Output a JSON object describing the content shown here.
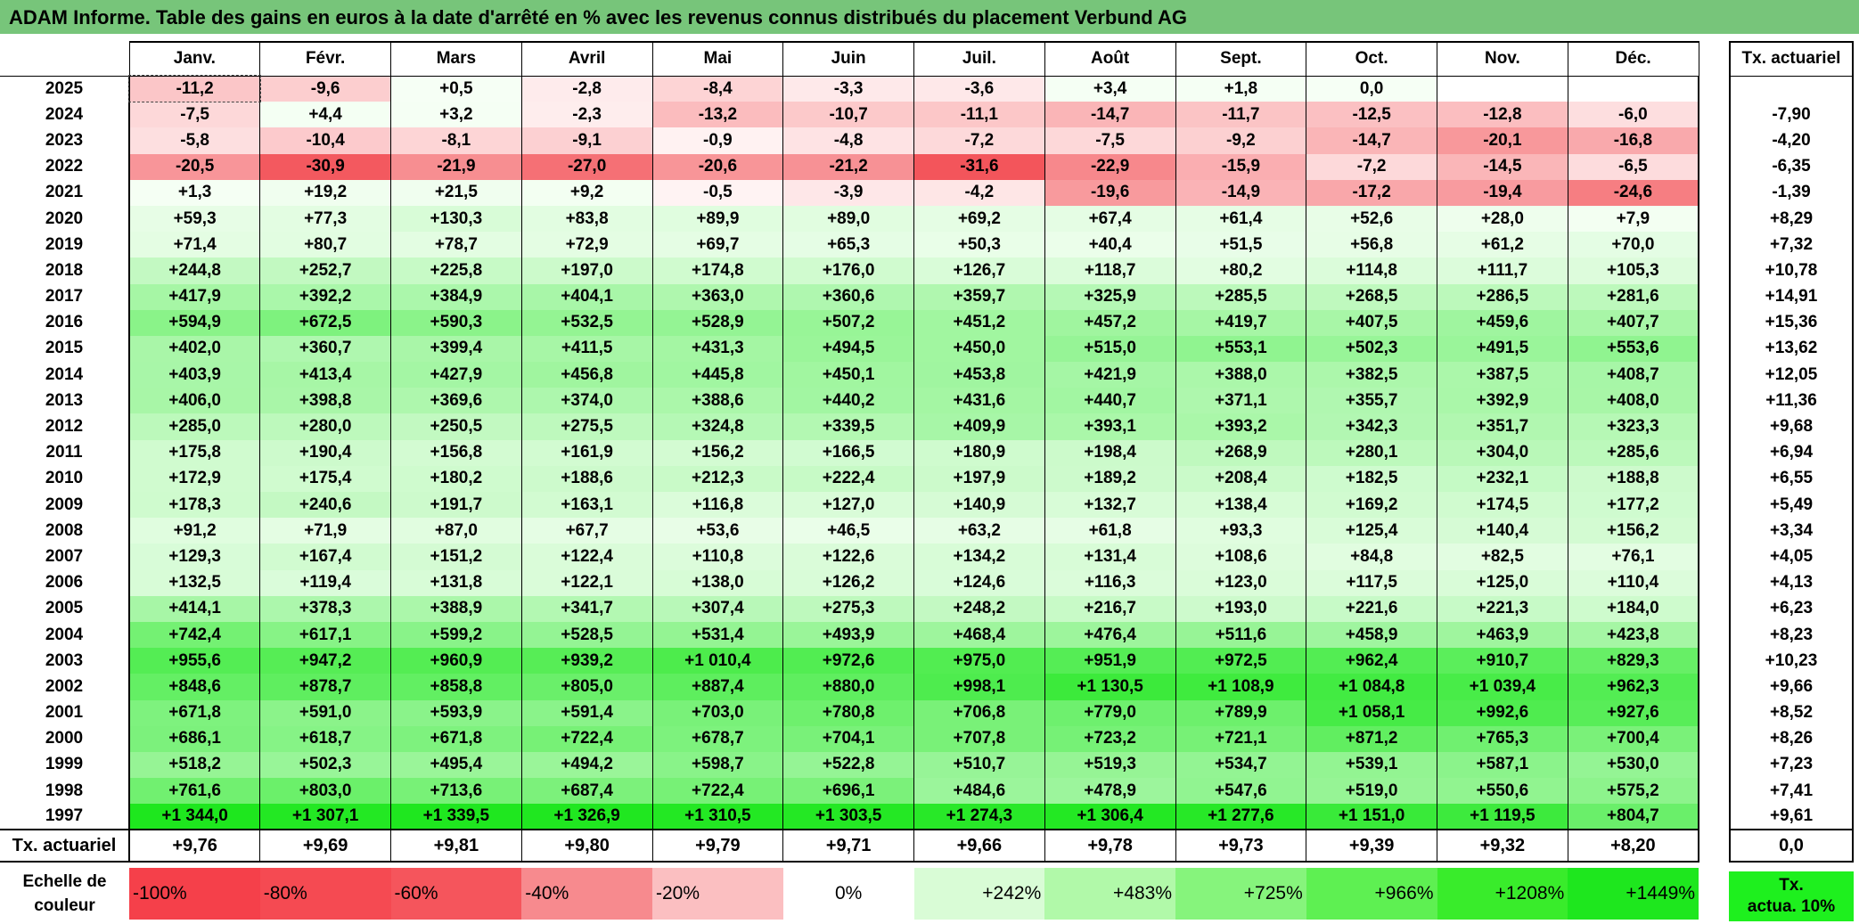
{
  "title": "ADAM Informe. Table des gains en euros à la date d'arrêté en % avec les revenus connus distribués du placement Verbund AG",
  "months": [
    "Janv.",
    "Févr.",
    "Mars",
    "Avril",
    "Mai",
    "Juin",
    "Juil.",
    "Août",
    "Sept.",
    "Oct.",
    "Nov.",
    "Déc."
  ],
  "rate_header": "Tx. actuariel",
  "rows": [
    {
      "year": "2025",
      "values": [
        "-11,2",
        "-9,6",
        "+0,5",
        "-2,8",
        "-8,4",
        "-3,3",
        "-3,6",
        "+3,4",
        "+1,8",
        "0,0",
        "",
        ""
      ],
      "rate": ""
    },
    {
      "year": "2024",
      "values": [
        "-7,5",
        "+4,4",
        "+3,2",
        "-2,3",
        "-13,2",
        "-10,7",
        "-11,1",
        "-14,7",
        "-11,7",
        "-12,5",
        "-12,8",
        "-6,0"
      ],
      "rate": "-7,90"
    },
    {
      "year": "2023",
      "values": [
        "-5,8",
        "-10,4",
        "-8,1",
        "-9,1",
        "-0,9",
        "-4,8",
        "-7,2",
        "-7,5",
        "-9,2",
        "-14,7",
        "-20,1",
        "-16,8"
      ],
      "rate": "-4,20"
    },
    {
      "year": "2022",
      "values": [
        "-20,5",
        "-30,9",
        "-21,9",
        "-27,0",
        "-20,6",
        "-21,2",
        "-31,6",
        "-22,9",
        "-15,9",
        "-7,2",
        "-14,5",
        "-6,5"
      ],
      "rate": "-6,35"
    },
    {
      "year": "2021",
      "values": [
        "+1,3",
        "+19,2",
        "+21,5",
        "+9,2",
        "-0,5",
        "-3,9",
        "-4,2",
        "-19,6",
        "-14,9",
        "-17,2",
        "-19,4",
        "-24,6"
      ],
      "rate": "-1,39"
    },
    {
      "year": "2020",
      "values": [
        "+59,3",
        "+77,3",
        "+130,3",
        "+83,8",
        "+89,9",
        "+89,0",
        "+69,2",
        "+67,4",
        "+61,4",
        "+52,6",
        "+28,0",
        "+7,9"
      ],
      "rate": "+8,29"
    },
    {
      "year": "2019",
      "values": [
        "+71,4",
        "+80,7",
        "+78,7",
        "+72,9",
        "+69,7",
        "+65,3",
        "+50,3",
        "+40,4",
        "+51,5",
        "+56,8",
        "+61,2",
        "+70,0"
      ],
      "rate": "+7,32"
    },
    {
      "year": "2018",
      "values": [
        "+244,8",
        "+252,7",
        "+225,8",
        "+197,0",
        "+174,8",
        "+176,0",
        "+126,7",
        "+118,7",
        "+80,2",
        "+114,8",
        "+111,7",
        "+105,3"
      ],
      "rate": "+10,78"
    },
    {
      "year": "2017",
      "values": [
        "+417,9",
        "+392,2",
        "+384,9",
        "+404,1",
        "+363,0",
        "+360,6",
        "+359,7",
        "+325,9",
        "+285,5",
        "+268,5",
        "+286,5",
        "+281,6"
      ],
      "rate": "+14,91"
    },
    {
      "year": "2016",
      "values": [
        "+594,9",
        "+672,5",
        "+590,3",
        "+532,5",
        "+528,9",
        "+507,2",
        "+451,2",
        "+457,2",
        "+419,7",
        "+407,5",
        "+459,6",
        "+407,7"
      ],
      "rate": "+15,36"
    },
    {
      "year": "2015",
      "values": [
        "+402,0",
        "+360,7",
        "+399,4",
        "+411,5",
        "+431,3",
        "+494,5",
        "+450,0",
        "+515,0",
        "+553,1",
        "+502,3",
        "+491,5",
        "+553,6"
      ],
      "rate": "+13,62"
    },
    {
      "year": "2014",
      "values": [
        "+403,9",
        "+413,4",
        "+427,9",
        "+456,8",
        "+445,8",
        "+450,1",
        "+453,8",
        "+421,9",
        "+388,0",
        "+382,5",
        "+387,5",
        "+408,7"
      ],
      "rate": "+12,05"
    },
    {
      "year": "2013",
      "values": [
        "+406,0",
        "+398,8",
        "+369,6",
        "+374,0",
        "+388,6",
        "+440,2",
        "+431,6",
        "+440,7",
        "+371,1",
        "+355,7",
        "+392,9",
        "+408,0"
      ],
      "rate": "+11,36"
    },
    {
      "year": "2012",
      "values": [
        "+285,0",
        "+280,0",
        "+250,5",
        "+275,5",
        "+324,8",
        "+339,5",
        "+409,9",
        "+393,1",
        "+393,2",
        "+342,3",
        "+351,7",
        "+323,3"
      ],
      "rate": "+9,68"
    },
    {
      "year": "2011",
      "values": [
        "+175,8",
        "+190,4",
        "+156,8",
        "+161,9",
        "+156,2",
        "+166,5",
        "+180,9",
        "+198,4",
        "+268,9",
        "+280,1",
        "+304,0",
        "+285,6"
      ],
      "rate": "+6,94"
    },
    {
      "year": "2010",
      "values": [
        "+172,9",
        "+175,4",
        "+180,2",
        "+188,6",
        "+212,3",
        "+222,4",
        "+197,9",
        "+189,2",
        "+208,4",
        "+182,5",
        "+232,1",
        "+188,8"
      ],
      "rate": "+6,55"
    },
    {
      "year": "2009",
      "values": [
        "+178,3",
        "+240,6",
        "+191,7",
        "+163,1",
        "+116,8",
        "+127,0",
        "+140,9",
        "+132,7",
        "+138,4",
        "+169,2",
        "+174,5",
        "+177,2"
      ],
      "rate": "+5,49"
    },
    {
      "year": "2008",
      "values": [
        "+91,2",
        "+71,9",
        "+87,0",
        "+67,7",
        "+53,6",
        "+46,5",
        "+63,2",
        "+61,8",
        "+93,3",
        "+125,4",
        "+140,4",
        "+156,2"
      ],
      "rate": "+3,34"
    },
    {
      "year": "2007",
      "values": [
        "+129,3",
        "+167,4",
        "+151,2",
        "+122,4",
        "+110,8",
        "+122,6",
        "+134,2",
        "+131,4",
        "+108,6",
        "+84,8",
        "+82,5",
        "+76,1"
      ],
      "rate": "+4,05"
    },
    {
      "year": "2006",
      "values": [
        "+132,5",
        "+119,4",
        "+131,8",
        "+122,1",
        "+138,0",
        "+126,2",
        "+124,6",
        "+116,3",
        "+123,0",
        "+117,5",
        "+125,0",
        "+110,4"
      ],
      "rate": "+4,13"
    },
    {
      "year": "2005",
      "values": [
        "+414,1",
        "+378,3",
        "+388,9",
        "+341,7",
        "+307,4",
        "+275,3",
        "+248,2",
        "+216,7",
        "+193,0",
        "+221,6",
        "+221,3",
        "+184,0"
      ],
      "rate": "+6,23"
    },
    {
      "year": "2004",
      "values": [
        "+742,4",
        "+617,1",
        "+599,2",
        "+528,5",
        "+531,4",
        "+493,9",
        "+468,4",
        "+476,4",
        "+511,6",
        "+458,9",
        "+463,9",
        "+423,8"
      ],
      "rate": "+8,23"
    },
    {
      "year": "2003",
      "values": [
        "+955,6",
        "+947,2",
        "+960,9",
        "+939,2",
        "+1 010,4",
        "+972,6",
        "+975,0",
        "+951,9",
        "+972,5",
        "+962,4",
        "+910,7",
        "+829,3"
      ],
      "rate": "+10,23"
    },
    {
      "year": "2002",
      "values": [
        "+848,6",
        "+878,7",
        "+858,8",
        "+805,0",
        "+887,4",
        "+880,0",
        "+998,1",
        "+1 130,5",
        "+1 108,9",
        "+1 084,8",
        "+1 039,4",
        "+962,3"
      ],
      "rate": "+9,66"
    },
    {
      "year": "2001",
      "values": [
        "+671,8",
        "+591,0",
        "+593,9",
        "+591,4",
        "+703,0",
        "+780,8",
        "+706,8",
        "+779,0",
        "+789,9",
        "+1 058,1",
        "+992,6",
        "+927,6"
      ],
      "rate": "+8,52"
    },
    {
      "year": "2000",
      "values": [
        "+686,1",
        "+618,7",
        "+671,8",
        "+722,4",
        "+678,7",
        "+704,1",
        "+707,8",
        "+723,2",
        "+721,1",
        "+871,2",
        "+765,3",
        "+700,4"
      ],
      "rate": "+8,26"
    },
    {
      "year": "1999",
      "values": [
        "+518,2",
        "+502,3",
        "+495,4",
        "+494,2",
        "+598,7",
        "+522,8",
        "+510,7",
        "+519,3",
        "+534,7",
        "+539,1",
        "+587,1",
        "+530,0"
      ],
      "rate": "+7,23"
    },
    {
      "year": "1998",
      "values": [
        "+761,6",
        "+803,0",
        "+713,6",
        "+687,4",
        "+722,4",
        "+696,1",
        "+484,6",
        "+478,9",
        "+547,6",
        "+519,0",
        "+550,6",
        "+575,2"
      ],
      "rate": "+7,41"
    },
    {
      "year": "1997",
      "values": [
        "+1 344,0",
        "+1 307,1",
        "+1 339,5",
        "+1 326,9",
        "+1 310,5",
        "+1 303,5",
        "+1 274,3",
        "+1 306,4",
        "+1 277,6",
        "+1 151,0",
        "+1 119,5",
        "+804,7"
      ],
      "rate": "+9,61"
    }
  ],
  "footer": {
    "label": "Tx. actuariel",
    "values": [
      "+9,76",
      "+9,69",
      "+9,81",
      "+9,80",
      "+9,79",
      "+9,71",
      "+9,66",
      "+9,78",
      "+9,73",
      "+9,39",
      "+9,32",
      "+8,20"
    ],
    "rate": "0,0"
  },
  "scale": {
    "label_line1": "Echelle de",
    "label_line2": "couleur",
    "steps": [
      "-100%",
      "-80%",
      "-60%",
      "-40%",
      "-20%",
      "0%",
      "+242%",
      "+483%",
      "+725%",
      "+966%",
      "+1208%",
      "+1449%"
    ],
    "step_colors": [
      "#f5404a",
      "#f54a52",
      "#f5555c",
      "#f78a8e",
      "#fbbfc1",
      "#ffffff",
      "#d9fcd6",
      "#b1f9a9",
      "#86f47c",
      "#5ef052",
      "#39ec2b",
      "#1ee71e"
    ],
    "right_line1": "Tx.",
    "right_line2": "actua. 10%",
    "right_color": "#1ef01e"
  },
  "colors": {
    "title_bg": "#77c57a",
    "neg_strong": "#f24a50",
    "pos_strong": "#1ee71e"
  }
}
